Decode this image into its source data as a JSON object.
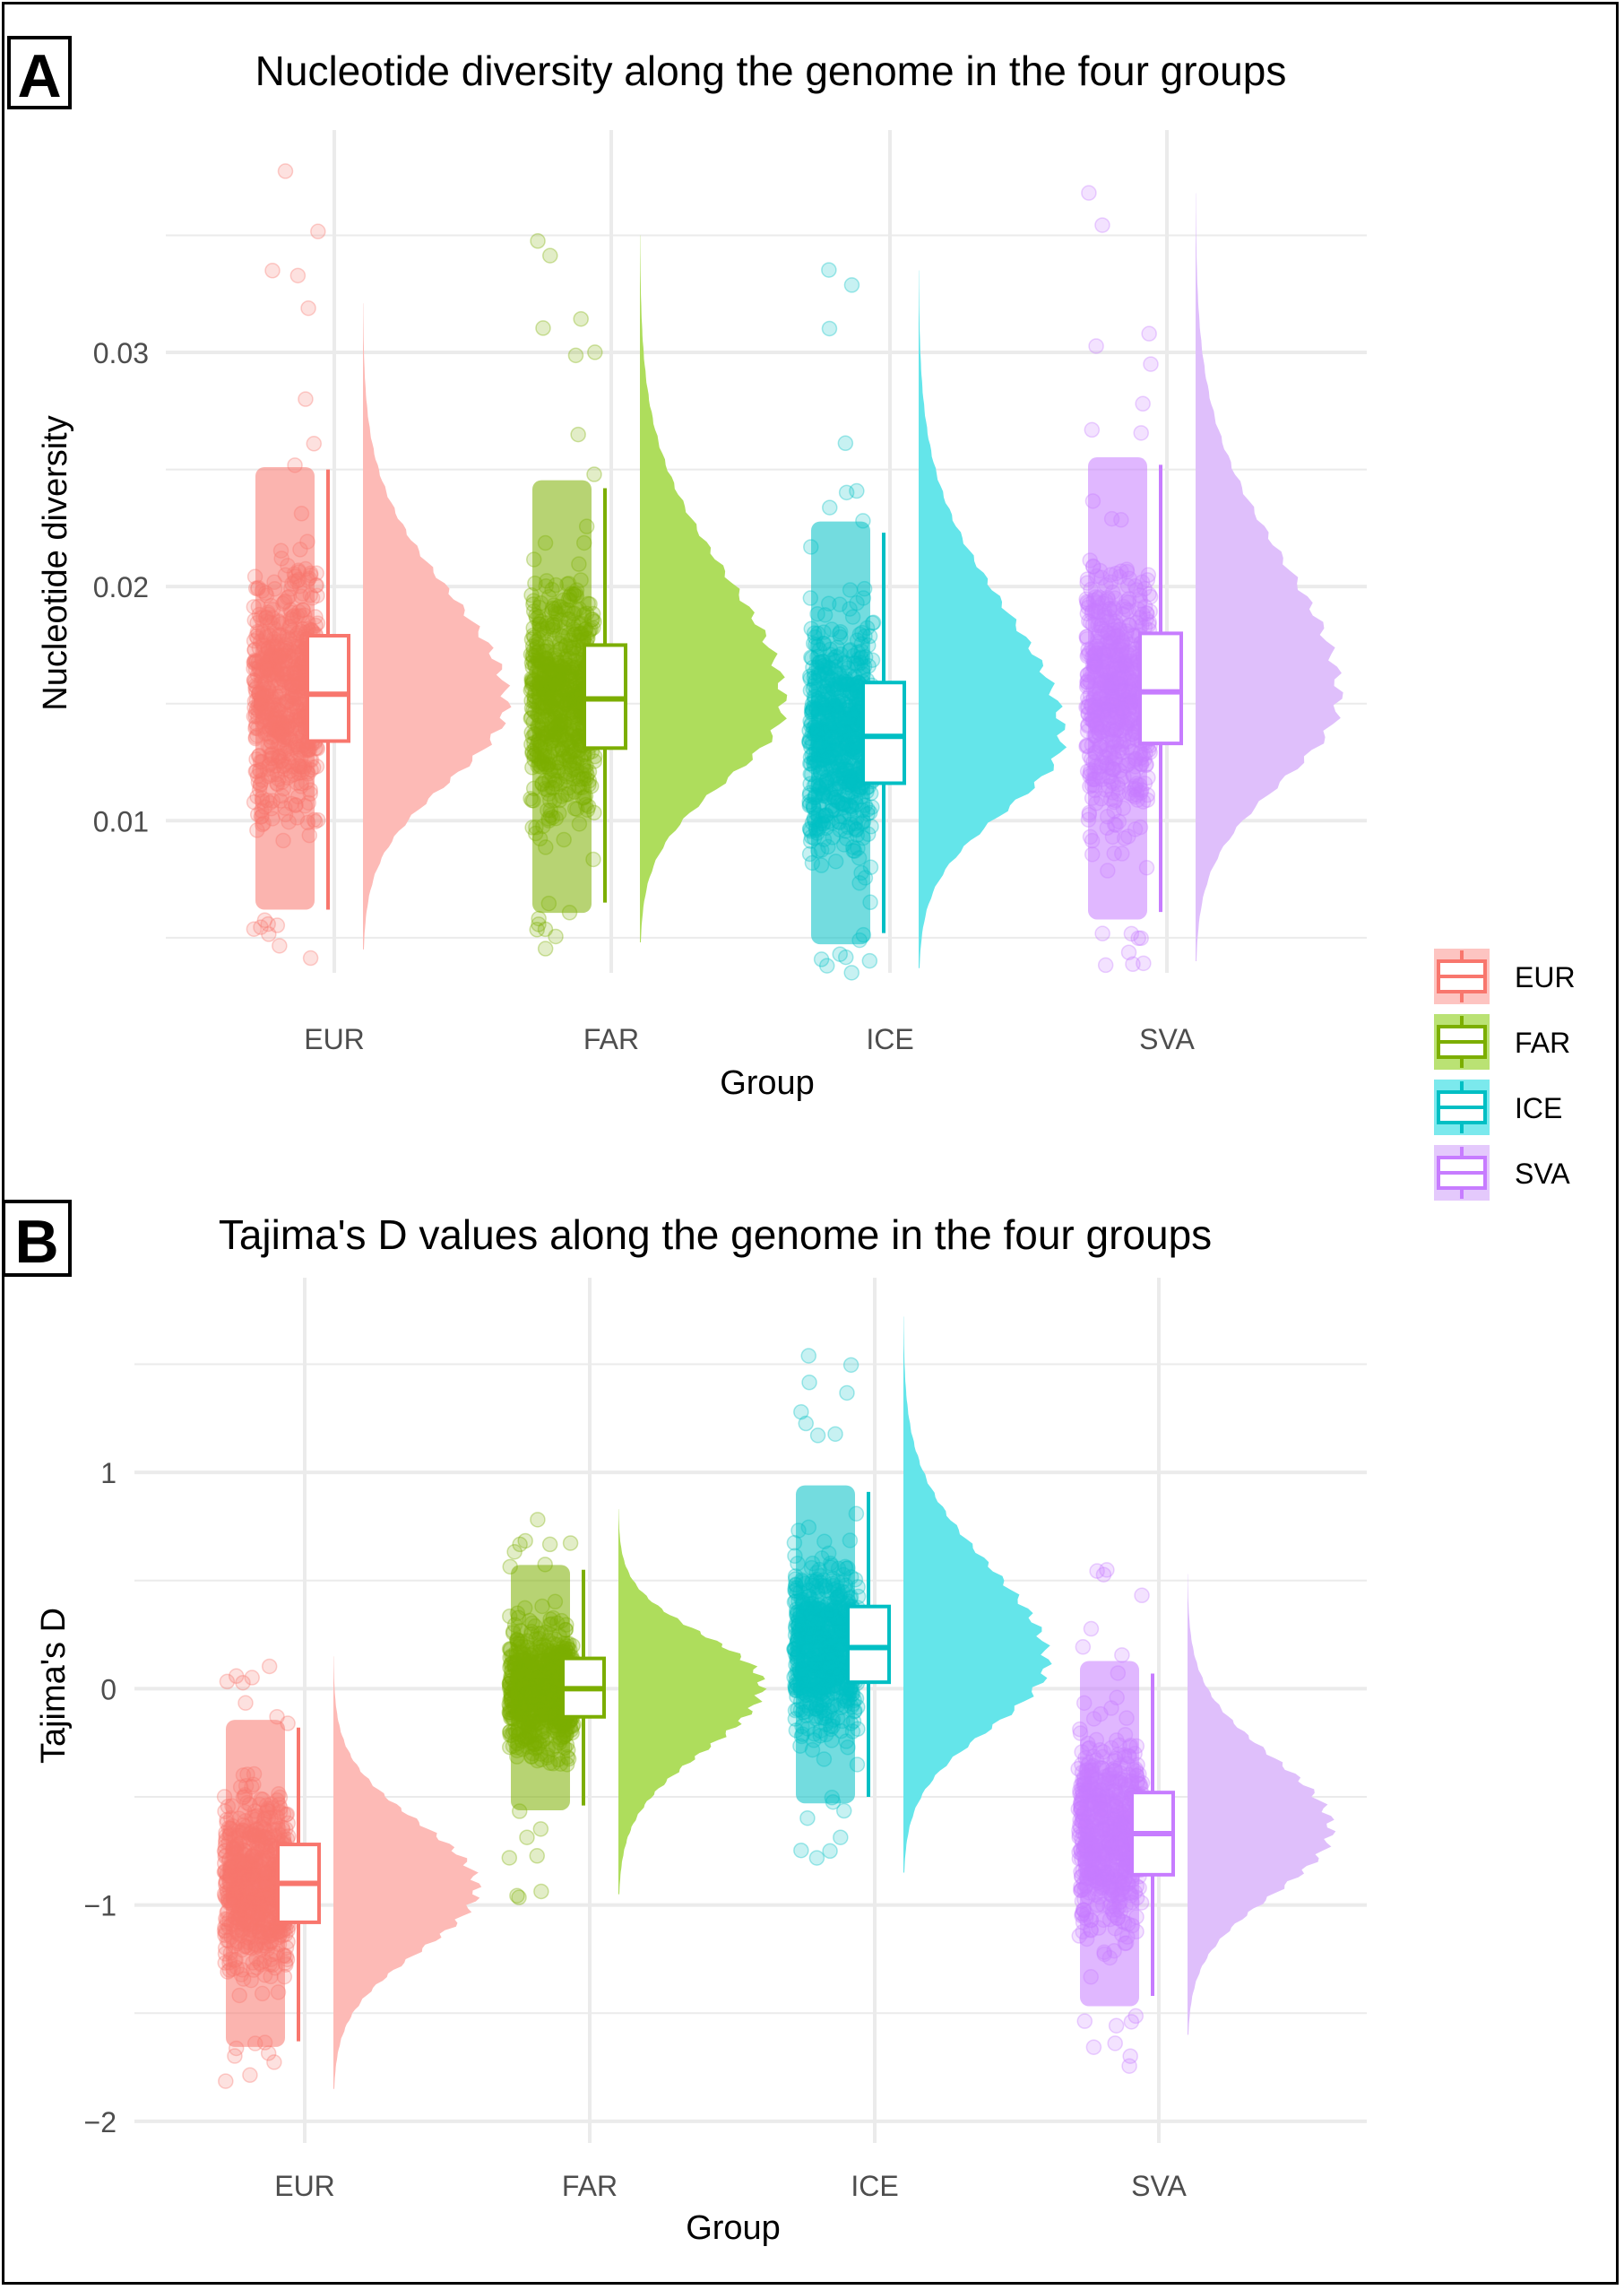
{
  "chart_data": [
    {
      "panel": "A",
      "type": "raincloud",
      "title": "Nucleotide diversity along the genome in the four groups",
      "xlabel": "Group",
      "ylabel": "Nucleotide diversity",
      "categories": [
        "EUR",
        "FAR",
        "ICE",
        "SVA"
      ],
      "yticks": [
        0.01,
        0.02,
        0.03
      ],
      "ytick_labels": [
        "0.01",
        "0.02",
        "0.03"
      ],
      "ylim": [
        0.0035,
        0.0395
      ],
      "grid": true,
      "series": [
        {
          "name": "EUR",
          "color": "#F8766D",
          "cloud_color": "#FDBAB6",
          "box": {
            "min": 0.0062,
            "q1": 0.0134,
            "median": 0.0154,
            "q3": 0.0179,
            "max": 0.025
          },
          "points_range": [
            0.0037,
            0.0378
          ],
          "density_peak": 0.015,
          "density_range": [
            0.0045,
            0.0321
          ]
        },
        {
          "name": "FAR",
          "color": "#7CAE00",
          "cloud_color": "#AEDD5C",
          "box": {
            "min": 0.0065,
            "q1": 0.0131,
            "median": 0.0152,
            "q3": 0.0175,
            "max": 0.0242
          },
          "points_range": [
            0.0045,
            0.0352
          ],
          "density_peak": 0.0149,
          "density_range": [
            0.0048,
            0.035
          ]
        },
        {
          "name": "ICE",
          "color": "#00BFC4",
          "cloud_color": "#64E5EA",
          "box": {
            "min": 0.0052,
            "q1": 0.0116,
            "median": 0.0136,
            "q3": 0.0159,
            "max": 0.0223
          },
          "points_range": [
            0.0034,
            0.0338
          ],
          "density_peak": 0.0135,
          "density_range": [
            0.0037,
            0.0335
          ]
        },
        {
          "name": "SVA",
          "color": "#C77CFF",
          "cloud_color": "#DFBFFB",
          "box": {
            "min": 0.0061,
            "q1": 0.0133,
            "median": 0.0155,
            "q3": 0.018,
            "max": 0.0252
          },
          "points_range": [
            0.0034,
            0.037
          ],
          "density_peak": 0.0152,
          "density_range": [
            0.004,
            0.0368
          ]
        }
      ]
    },
    {
      "panel": "B",
      "type": "raincloud",
      "title": "Tajima's D values along the genome in the four groups",
      "xlabel": "Group",
      "ylabel": "Tajima's D",
      "categories": [
        "EUR",
        "FAR",
        "ICE",
        "SVA"
      ],
      "yticks": [
        -2,
        -1,
        0,
        1
      ],
      "ytick_labels": [
        "−2",
        "−1",
        "0",
        "1"
      ],
      "ylim": [
        -2.1,
        1.9
      ],
      "grid": true,
      "series": [
        {
          "name": "EUR",
          "color": "#F8766D",
          "cloud_color": "#FDBAB6",
          "box": {
            "min": -1.63,
            "q1": -1.08,
            "median": -0.9,
            "q3": -0.72,
            "max": -0.18
          },
          "points_range": [
            -1.9,
            0.16
          ],
          "density_peak": -0.92,
          "density_range": [
            -1.85,
            0.15
          ]
        },
        {
          "name": "FAR",
          "color": "#7CAE00",
          "cloud_color": "#AEDD5C",
          "box": {
            "min": -0.54,
            "q1": -0.13,
            "median": 0.0,
            "q3": 0.14,
            "max": 0.55
          },
          "points_range": [
            -0.97,
            0.82
          ],
          "density_peak": 0.02,
          "density_range": [
            -0.95,
            0.83
          ]
        },
        {
          "name": "ICE",
          "color": "#00BFC4",
          "cloud_color": "#64E5EA",
          "box": {
            "min": -0.5,
            "q1": 0.03,
            "median": 0.19,
            "q3": 0.38,
            "max": 0.91
          },
          "points_range": [
            -0.88,
            1.74
          ],
          "density_peak": 0.12,
          "density_range": [
            -0.85,
            1.72
          ]
        },
        {
          "name": "SVA",
          "color": "#C77CFF",
          "cloud_color": "#DFBFFB",
          "box": {
            "min": -1.42,
            "q1": -0.86,
            "median": -0.67,
            "q3": -0.48,
            "max": 0.07
          },
          "points_range": [
            -1.75,
            0.57
          ],
          "density_peak": -0.65,
          "density_range": [
            -1.6,
            0.53
          ]
        }
      ]
    }
  ],
  "panel_labels": {
    "a": "A",
    "b": "B"
  },
  "legend": {
    "placement": "right",
    "items": [
      {
        "label": "EUR",
        "color": "#F8766D",
        "fill": "#FDBAB6"
      },
      {
        "label": "FAR",
        "color": "#7CAE00",
        "fill": "#AEDD5C"
      },
      {
        "label": "ICE",
        "color": "#00BFC4",
        "fill": "#64E5EA"
      },
      {
        "label": "SVA",
        "color": "#C77CFF",
        "fill": "#DFBFFB"
      }
    ]
  }
}
